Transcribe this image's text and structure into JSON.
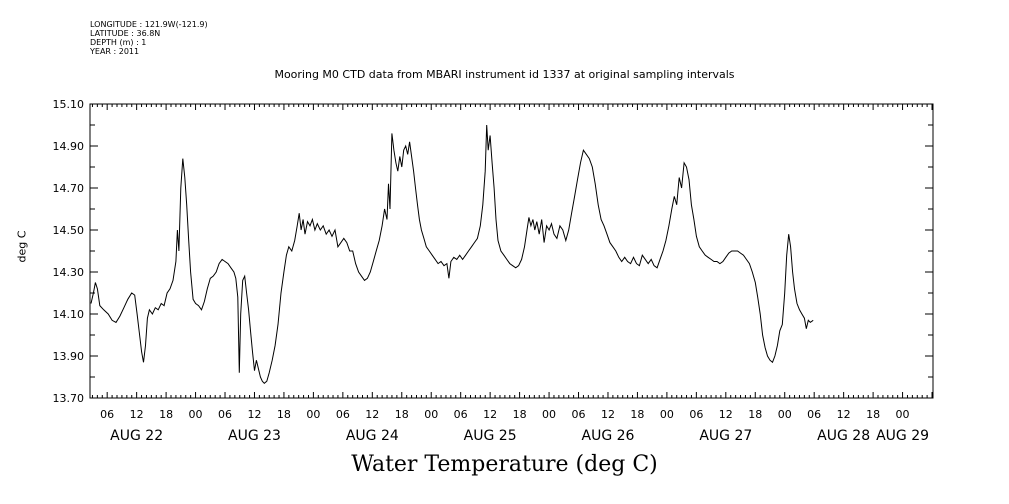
{
  "header": {
    "longitude": "LONGITUDE : 121.9W(-121.9)",
    "latitude": "LATITUDE : 36.8N",
    "depth": "DEPTH (m) : 1",
    "year": "YEAR : 2011"
  },
  "chart_data": {
    "type": "line",
    "title": "Mooring M0 CTD data from MBARI instrument id 1337 at original sampling intervals",
    "xlabel": "Water Temperature (deg C)",
    "ylabel": "deg C",
    "ylim": [
      13.7,
      15.1
    ],
    "yticks": [
      "13.70",
      "13.90",
      "14.10",
      "14.30",
      "14.50",
      "14.70",
      "14.90",
      "15.10"
    ],
    "x_unit": "hours since start of AUG 21",
    "xlim": [
      26.5,
      198.2
    ],
    "hour_labels": [
      {
        "x": 30,
        "label": "06"
      },
      {
        "x": 36,
        "label": "12"
      },
      {
        "x": 42,
        "label": "18"
      },
      {
        "x": 48,
        "label": "00"
      },
      {
        "x": 54,
        "label": "06"
      },
      {
        "x": 60,
        "label": "12"
      },
      {
        "x": 66,
        "label": "18"
      },
      {
        "x": 72,
        "label": "00"
      },
      {
        "x": 78,
        "label": "06"
      },
      {
        "x": 84,
        "label": "12"
      },
      {
        "x": 90,
        "label": "18"
      },
      {
        "x": 96,
        "label": "00"
      },
      {
        "x": 102,
        "label": "06"
      },
      {
        "x": 108,
        "label": "12"
      },
      {
        "x": 114,
        "label": "18"
      },
      {
        "x": 120,
        "label": "00"
      },
      {
        "x": 126,
        "label": "06"
      },
      {
        "x": 132,
        "label": "12"
      },
      {
        "x": 138,
        "label": "18"
      },
      {
        "x": 144,
        "label": "00"
      },
      {
        "x": 150,
        "label": "06"
      },
      {
        "x": 156,
        "label": "12"
      },
      {
        "x": 162,
        "label": "18"
      },
      {
        "x": 168,
        "label": "00"
      },
      {
        "x": 174,
        "label": "06"
      },
      {
        "x": 180,
        "label": "12"
      },
      {
        "x": 186,
        "label": "18"
      },
      {
        "x": 192,
        "label": "00"
      }
    ],
    "day_labels": [
      {
        "x": 36,
        "label": "AUG 22"
      },
      {
        "x": 60,
        "label": "AUG 23"
      },
      {
        "x": 84,
        "label": "AUG 24"
      },
      {
        "x": 108,
        "label": "AUG 25"
      },
      {
        "x": 132,
        "label": "AUG 26"
      },
      {
        "x": 156,
        "label": "AUG 27"
      },
      {
        "x": 180,
        "label": "AUG 28"
      },
      {
        "x": 192,
        "label": "AUG 29"
      }
    ],
    "grid": false,
    "series": [
      {
        "values": [
          [
            26.7,
            14.15
          ],
          [
            27.2,
            14.2
          ],
          [
            27.6,
            14.25
          ],
          [
            28.0,
            14.22
          ],
          [
            28.5,
            14.14
          ],
          [
            29.3,
            14.12
          ],
          [
            30.2,
            14.1
          ],
          [
            31.0,
            14.07
          ],
          [
            31.8,
            14.06
          ],
          [
            32.6,
            14.09
          ],
          [
            33.4,
            14.13
          ],
          [
            34.2,
            14.17
          ],
          [
            35.0,
            14.2
          ],
          [
            35.6,
            14.19
          ],
          [
            36.1,
            14.1
          ],
          [
            36.6,
            14.0
          ],
          [
            37.0,
            13.92
          ],
          [
            37.4,
            13.87
          ],
          [
            37.8,
            13.95
          ],
          [
            38.2,
            14.08
          ],
          [
            38.6,
            14.12
          ],
          [
            39.2,
            14.1
          ],
          [
            39.8,
            14.13
          ],
          [
            40.4,
            14.12
          ],
          [
            41.0,
            14.15
          ],
          [
            41.6,
            14.14
          ],
          [
            42.2,
            14.2
          ],
          [
            42.8,
            14.22
          ],
          [
            43.4,
            14.26
          ],
          [
            44.0,
            14.35
          ],
          [
            44.3,
            14.5
          ],
          [
            44.6,
            14.4
          ],
          [
            45.0,
            14.7
          ],
          [
            45.4,
            14.84
          ],
          [
            45.8,
            14.75
          ],
          [
            46.2,
            14.62
          ],
          [
            46.6,
            14.45
          ],
          [
            47.0,
            14.3
          ],
          [
            47.5,
            14.17
          ],
          [
            48.0,
            14.15
          ],
          [
            48.6,
            14.14
          ],
          [
            49.2,
            14.12
          ],
          [
            49.8,
            14.16
          ],
          [
            50.4,
            14.22
          ],
          [
            51.0,
            14.27
          ],
          [
            51.6,
            14.28
          ],
          [
            52.2,
            14.3
          ],
          [
            52.8,
            14.34
          ],
          [
            53.4,
            14.36
          ],
          [
            54.0,
            14.35
          ],
          [
            54.6,
            14.34
          ],
          [
            55.2,
            14.32
          ],
          [
            55.8,
            14.3
          ],
          [
            56.2,
            14.27
          ],
          [
            56.6,
            14.18
          ],
          [
            56.9,
            13.82
          ],
          [
            57.2,
            14.1
          ],
          [
            57.6,
            14.26
          ],
          [
            58.0,
            14.28
          ],
          [
            58.4,
            14.2
          ],
          [
            58.8,
            14.12
          ],
          [
            59.2,
            14.02
          ],
          [
            59.6,
            13.92
          ],
          [
            60.0,
            13.83
          ],
          [
            60.4,
            13.88
          ],
          [
            60.8,
            13.84
          ],
          [
            61.2,
            13.8
          ],
          [
            61.6,
            13.78
          ],
          [
            62.0,
            13.77
          ],
          [
            62.5,
            13.78
          ],
          [
            63.0,
            13.82
          ],
          [
            63.6,
            13.88
          ],
          [
            64.2,
            13.95
          ],
          [
            64.8,
            14.05
          ],
          [
            65.4,
            14.2
          ],
          [
            66.0,
            14.3
          ],
          [
            66.5,
            14.38
          ],
          [
            67.0,
            14.42
          ],
          [
            67.6,
            14.4
          ],
          [
            68.2,
            14.45
          ],
          [
            68.7,
            14.52
          ],
          [
            69.1,
            14.58
          ],
          [
            69.5,
            14.5
          ],
          [
            69.9,
            14.55
          ],
          [
            70.3,
            14.48
          ],
          [
            70.8,
            14.54
          ],
          [
            71.3,
            14.52
          ],
          [
            71.8,
            14.55
          ],
          [
            72.3,
            14.5
          ],
          [
            72.8,
            14.53
          ],
          [
            73.4,
            14.5
          ],
          [
            74.0,
            14.52
          ],
          [
            74.6,
            14.48
          ],
          [
            75.2,
            14.5
          ],
          [
            75.8,
            14.47
          ],
          [
            76.4,
            14.5
          ],
          [
            77.0,
            14.42
          ],
          [
            77.6,
            14.44
          ],
          [
            78.2,
            14.46
          ],
          [
            78.8,
            14.44
          ],
          [
            79.4,
            14.4
          ],
          [
            80.0,
            14.4
          ],
          [
            80.6,
            14.34
          ],
          [
            81.2,
            14.3
          ],
          [
            81.8,
            14.28
          ],
          [
            82.4,
            14.26
          ],
          [
            83.0,
            14.27
          ],
          [
            83.6,
            14.3
          ],
          [
            84.2,
            14.35
          ],
          [
            84.8,
            14.4
          ],
          [
            85.4,
            14.45
          ],
          [
            86.0,
            14.52
          ],
          [
            86.5,
            14.6
          ],
          [
            87.0,
            14.55
          ],
          [
            87.3,
            14.72
          ],
          [
            87.6,
            14.6
          ],
          [
            88.0,
            14.96
          ],
          [
            88.4,
            14.88
          ],
          [
            88.8,
            14.82
          ],
          [
            89.2,
            14.78
          ],
          [
            89.6,
            14.85
          ],
          [
            90.0,
            14.8
          ],
          [
            90.4,
            14.88
          ],
          [
            90.8,
            14.9
          ],
          [
            91.2,
            14.86
          ],
          [
            91.6,
            14.92
          ],
          [
            92.0,
            14.85
          ],
          [
            92.4,
            14.78
          ],
          [
            92.8,
            14.7
          ],
          [
            93.2,
            14.62
          ],
          [
            93.6,
            14.55
          ],
          [
            94.0,
            14.5
          ],
          [
            94.5,
            14.46
          ],
          [
            95.0,
            14.42
          ],
          [
            95.6,
            14.4
          ],
          [
            96.2,
            14.38
          ],
          [
            96.8,
            14.36
          ],
          [
            97.4,
            14.34
          ],
          [
            98.0,
            14.35
          ],
          [
            98.6,
            14.33
          ],
          [
            99.2,
            14.34
          ],
          [
            99.6,
            14.27
          ],
          [
            100.0,
            14.35
          ],
          [
            100.6,
            14.37
          ],
          [
            101.2,
            14.36
          ],
          [
            101.8,
            14.38
          ],
          [
            102.4,
            14.36
          ],
          [
            103.0,
            14.38
          ],
          [
            103.6,
            14.4
          ],
          [
            104.2,
            14.42
          ],
          [
            104.8,
            14.44
          ],
          [
            105.4,
            14.46
          ],
          [
            106.0,
            14.52
          ],
          [
            106.5,
            14.62
          ],
          [
            107.0,
            14.78
          ],
          [
            107.3,
            15.0
          ],
          [
            107.6,
            14.88
          ],
          [
            108.0,
            14.95
          ],
          [
            108.4,
            14.82
          ],
          [
            108.8,
            14.7
          ],
          [
            109.2,
            14.55
          ],
          [
            109.6,
            14.45
          ],
          [
            110.2,
            14.4
          ],
          [
            110.8,
            14.38
          ],
          [
            111.4,
            14.36
          ],
          [
            112.0,
            14.34
          ],
          [
            112.6,
            14.33
          ],
          [
            113.2,
            14.32
          ],
          [
            113.8,
            14.33
          ],
          [
            114.4,
            14.36
          ],
          [
            115.0,
            14.42
          ],
          [
            115.5,
            14.5
          ],
          [
            115.9,
            14.56
          ],
          [
            116.3,
            14.52
          ],
          [
            116.7,
            14.55
          ],
          [
            117.1,
            14.5
          ],
          [
            117.5,
            14.54
          ],
          [
            118.0,
            14.48
          ],
          [
            118.5,
            14.55
          ],
          [
            119.0,
            14.44
          ],
          [
            119.5,
            14.52
          ],
          [
            120.0,
            14.5
          ],
          [
            120.5,
            14.53
          ],
          [
            121.0,
            14.48
          ],
          [
            121.6,
            14.46
          ],
          [
            122.2,
            14.52
          ],
          [
            122.8,
            14.5
          ],
          [
            123.4,
            14.45
          ],
          [
            124.0,
            14.5
          ],
          [
            124.6,
            14.58
          ],
          [
            125.2,
            14.66
          ],
          [
            125.8,
            14.74
          ],
          [
            126.4,
            14.82
          ],
          [
            127.0,
            14.88
          ],
          [
            127.6,
            14.86
          ],
          [
            128.2,
            14.84
          ],
          [
            128.8,
            14.8
          ],
          [
            129.4,
            14.72
          ],
          [
            130.0,
            14.62
          ],
          [
            130.6,
            14.55
          ],
          [
            131.2,
            14.52
          ],
          [
            131.8,
            14.48
          ],
          [
            132.4,
            14.44
          ],
          [
            133.0,
            14.42
          ],
          [
            133.6,
            14.4
          ],
          [
            134.2,
            14.37
          ],
          [
            134.8,
            14.35
          ],
          [
            135.4,
            14.37
          ],
          [
            136.0,
            14.35
          ],
          [
            136.6,
            14.34
          ],
          [
            137.2,
            14.37
          ],
          [
            137.8,
            14.34
          ],
          [
            138.4,
            14.33
          ],
          [
            139.0,
            14.38
          ],
          [
            139.6,
            14.36
          ],
          [
            140.2,
            14.34
          ],
          [
            140.8,
            14.36
          ],
          [
            141.4,
            14.33
          ],
          [
            142.0,
            14.32
          ],
          [
            142.6,
            14.36
          ],
          [
            143.2,
            14.4
          ],
          [
            143.8,
            14.45
          ],
          [
            144.4,
            14.52
          ],
          [
            145.0,
            14.6
          ],
          [
            145.5,
            14.66
          ],
          [
            146.0,
            14.62
          ],
          [
            146.5,
            14.75
          ],
          [
            147.0,
            14.7
          ],
          [
            147.5,
            14.82
          ],
          [
            148.0,
            14.8
          ],
          [
            148.5,
            14.74
          ],
          [
            149.0,
            14.62
          ],
          [
            149.5,
            14.55
          ],
          [
            150.0,
            14.47
          ],
          [
            150.6,
            14.42
          ],
          [
            151.2,
            14.4
          ],
          [
            151.8,
            14.38
          ],
          [
            152.4,
            14.37
          ],
          [
            153.0,
            14.36
          ],
          [
            153.6,
            14.35
          ],
          [
            154.2,
            14.35
          ],
          [
            154.8,
            14.34
          ],
          [
            155.4,
            14.35
          ],
          [
            156.0,
            14.37
          ],
          [
            156.6,
            14.39
          ],
          [
            157.2,
            14.4
          ],
          [
            157.8,
            14.4
          ],
          [
            158.4,
            14.4
          ],
          [
            159.0,
            14.39
          ],
          [
            159.6,
            14.38
          ],
          [
            160.2,
            14.36
          ],
          [
            160.8,
            14.34
          ],
          [
            161.4,
            14.3
          ],
          [
            162.0,
            14.25
          ],
          [
            162.5,
            14.18
          ],
          [
            163.0,
            14.1
          ],
          [
            163.5,
            14.0
          ],
          [
            164.0,
            13.94
          ],
          [
            164.5,
            13.9
          ],
          [
            165.0,
            13.88
          ],
          [
            165.5,
            13.87
          ],
          [
            166.0,
            13.9
          ],
          [
            166.5,
            13.95
          ],
          [
            167.0,
            14.02
          ],
          [
            167.5,
            14.05
          ],
          [
            168.0,
            14.2
          ],
          [
            168.4,
            14.38
          ],
          [
            168.8,
            14.48
          ],
          [
            169.2,
            14.42
          ],
          [
            169.6,
            14.3
          ],
          [
            170.0,
            14.22
          ],
          [
            170.5,
            14.15
          ],
          [
            171.0,
            14.12
          ],
          [
            171.5,
            14.1
          ],
          [
            172.0,
            14.08
          ],
          [
            172.4,
            14.03
          ],
          [
            172.8,
            14.07
          ],
          [
            173.2,
            14.06
          ],
          [
            173.8,
            14.07
          ]
        ]
      }
    ]
  }
}
